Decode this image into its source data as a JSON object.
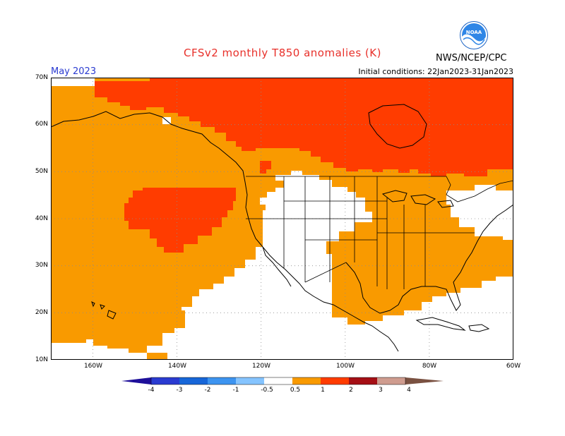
{
  "header": {
    "title": "CFSv2 monthly T850 anomalies (K)",
    "month": "May 2023",
    "initial_conditions": "Initial conditions: 22Jan2023-31Jan2023",
    "agency": "NWS/NCEP/CPC",
    "logo_text": "NOAA"
  },
  "map": {
    "lat_labels": [
      "70N",
      "60N",
      "50N",
      "40N",
      "30N",
      "20N",
      "10N"
    ],
    "lon_labels": [
      "160W",
      "140W",
      "120W",
      "100W",
      "80W",
      "60W"
    ],
    "projection": "cylindrical equidistant",
    "extent": {
      "lon": [
        -170,
        -60
      ],
      "lat": [
        10,
        70
      ]
    },
    "grid": "dotted",
    "colors": {
      "anomaly_0.5_1": "#f99a00",
      "anomaly_1_2": "#ff3c00",
      "frame": "#000000",
      "coastline": "#000000"
    }
  },
  "colorbar": {
    "labels": [
      "-4",
      "-3",
      "-2",
      "-1",
      "-0.5",
      "0.5",
      "1",
      "2",
      "3",
      "4"
    ],
    "colors": [
      "#1e0f9a",
      "#2a3bd1",
      "#1766d8",
      "#3d94f0",
      "#85c4ff",
      "#ffffff",
      "#f99a00",
      "#ff3c00",
      "#a50f15",
      "#cf9c8f",
      "#7a5141"
    ]
  }
}
